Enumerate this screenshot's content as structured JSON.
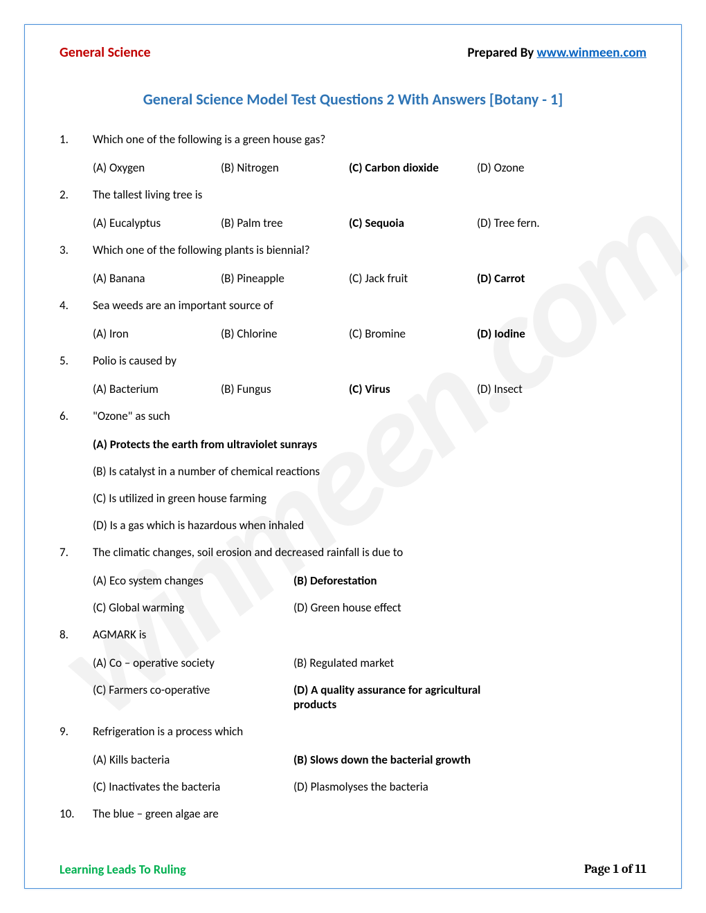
{
  "header": {
    "left": "General Science",
    "right_prefix": "Prepared By ",
    "right_link": "www.winmeen.com"
  },
  "title": "General Science Model Test Questions 2 With Answers [Botany - 1]",
  "watermark": "winmeen.com",
  "questions": [
    {
      "num": "1.",
      "text": "Which one of the following is a green house gas?",
      "layout": "4col",
      "opts": [
        {
          "t": "(A) Oxygen",
          "b": false
        },
        {
          "t": "(B) Nitrogen",
          "b": false
        },
        {
          "t": "(C) Carbon dioxide",
          "b": true
        },
        {
          "t": "(D) Ozone",
          "b": false
        }
      ]
    },
    {
      "num": "2.",
      "text": "The tallest living tree is",
      "layout": "4col",
      "opts": [
        {
          "t": "(A) Eucalyptus",
          "b": false
        },
        {
          "t": "(B) Palm tree",
          "b": false
        },
        {
          "t": "(C) Sequoia",
          "b": true
        },
        {
          "t": "(D) Tree fern.",
          "b": false
        }
      ]
    },
    {
      "num": "3.",
      "text": "Which one of the following plants is biennial?",
      "layout": "4col",
      "opts": [
        {
          "t": "(A) Banana",
          "b": false
        },
        {
          "t": "(B) Pineapple",
          "b": false
        },
        {
          "t": "(C) Jack fruit",
          "b": false
        },
        {
          "t": "(D) Carrot",
          "b": true
        }
      ]
    },
    {
      "num": "4.",
      "text": "Sea weeds are an important source of",
      "layout": "4col",
      "opts": [
        {
          "t": "(A) Iron",
          "b": false
        },
        {
          "t": "(B) Chlorine",
          "b": false
        },
        {
          "t": "(C) Bromine",
          "b": false
        },
        {
          "t": "(D) Iodine",
          "b": true
        }
      ]
    },
    {
      "num": "5.",
      "text": "Polio is caused by",
      "layout": "4col",
      "opts": [
        {
          "t": "(A) Bacterium",
          "b": false
        },
        {
          "t": "(B) Fungus",
          "b": false
        },
        {
          "t": "(C) Virus",
          "b": true
        },
        {
          "t": "(D) Insect",
          "b": false
        }
      ]
    },
    {
      "num": "6.",
      "text": "\"Ozone\" as such",
      "layout": "1col",
      "opts": [
        {
          "t": "(A) Protects the earth from ultraviolet sunrays",
          "b": true
        },
        {
          "t": "(B) Is catalyst in a number of chemical reactions",
          "b": false
        },
        {
          "t": "(C) Is utilized in green house farming",
          "b": false
        },
        {
          "t": "(D) Is a gas which is hazardous when inhaled",
          "b": false
        }
      ]
    },
    {
      "num": "7.",
      "text": "The climatic changes, soil erosion and decreased rainfall is due to",
      "layout": "2col",
      "opts": [
        {
          "t": "(A) Eco system changes",
          "b": false
        },
        {
          "t": "(B) Deforestation",
          "b": true
        },
        {
          "t": "(C) Global warming",
          "b": false
        },
        {
          "t": "(D) Green house effect",
          "b": false
        }
      ]
    },
    {
      "num": "8.",
      "text": "AGMARK is",
      "layout": "2col",
      "opts": [
        {
          "t": "(A) Co – operative society",
          "b": false
        },
        {
          "t": "(B) Regulated market",
          "b": false
        },
        {
          "t": "(C) Farmers co-operative",
          "b": false
        },
        {
          "t": "(D) A quality assurance for agricultural products",
          "b": true
        }
      ]
    },
    {
      "num": "9.",
      "text": "Refrigeration is a process which",
      "layout": "2col",
      "opts": [
        {
          "t": "(A) Kills bacteria",
          "b": false
        },
        {
          "t": "(B) Slows down the bacterial growth",
          "b": true
        },
        {
          "t": "(C) Inactivates the bacteria",
          "b": false
        },
        {
          "t": "(D) Plasmolyses the bacteria",
          "b": false
        }
      ]
    },
    {
      "num": "10.",
      "text": "The blue – green algae are",
      "layout": "none",
      "opts": []
    }
  ],
  "footer": {
    "left": "Learning Leads To Ruling",
    "right": "Page 1 of 11"
  }
}
